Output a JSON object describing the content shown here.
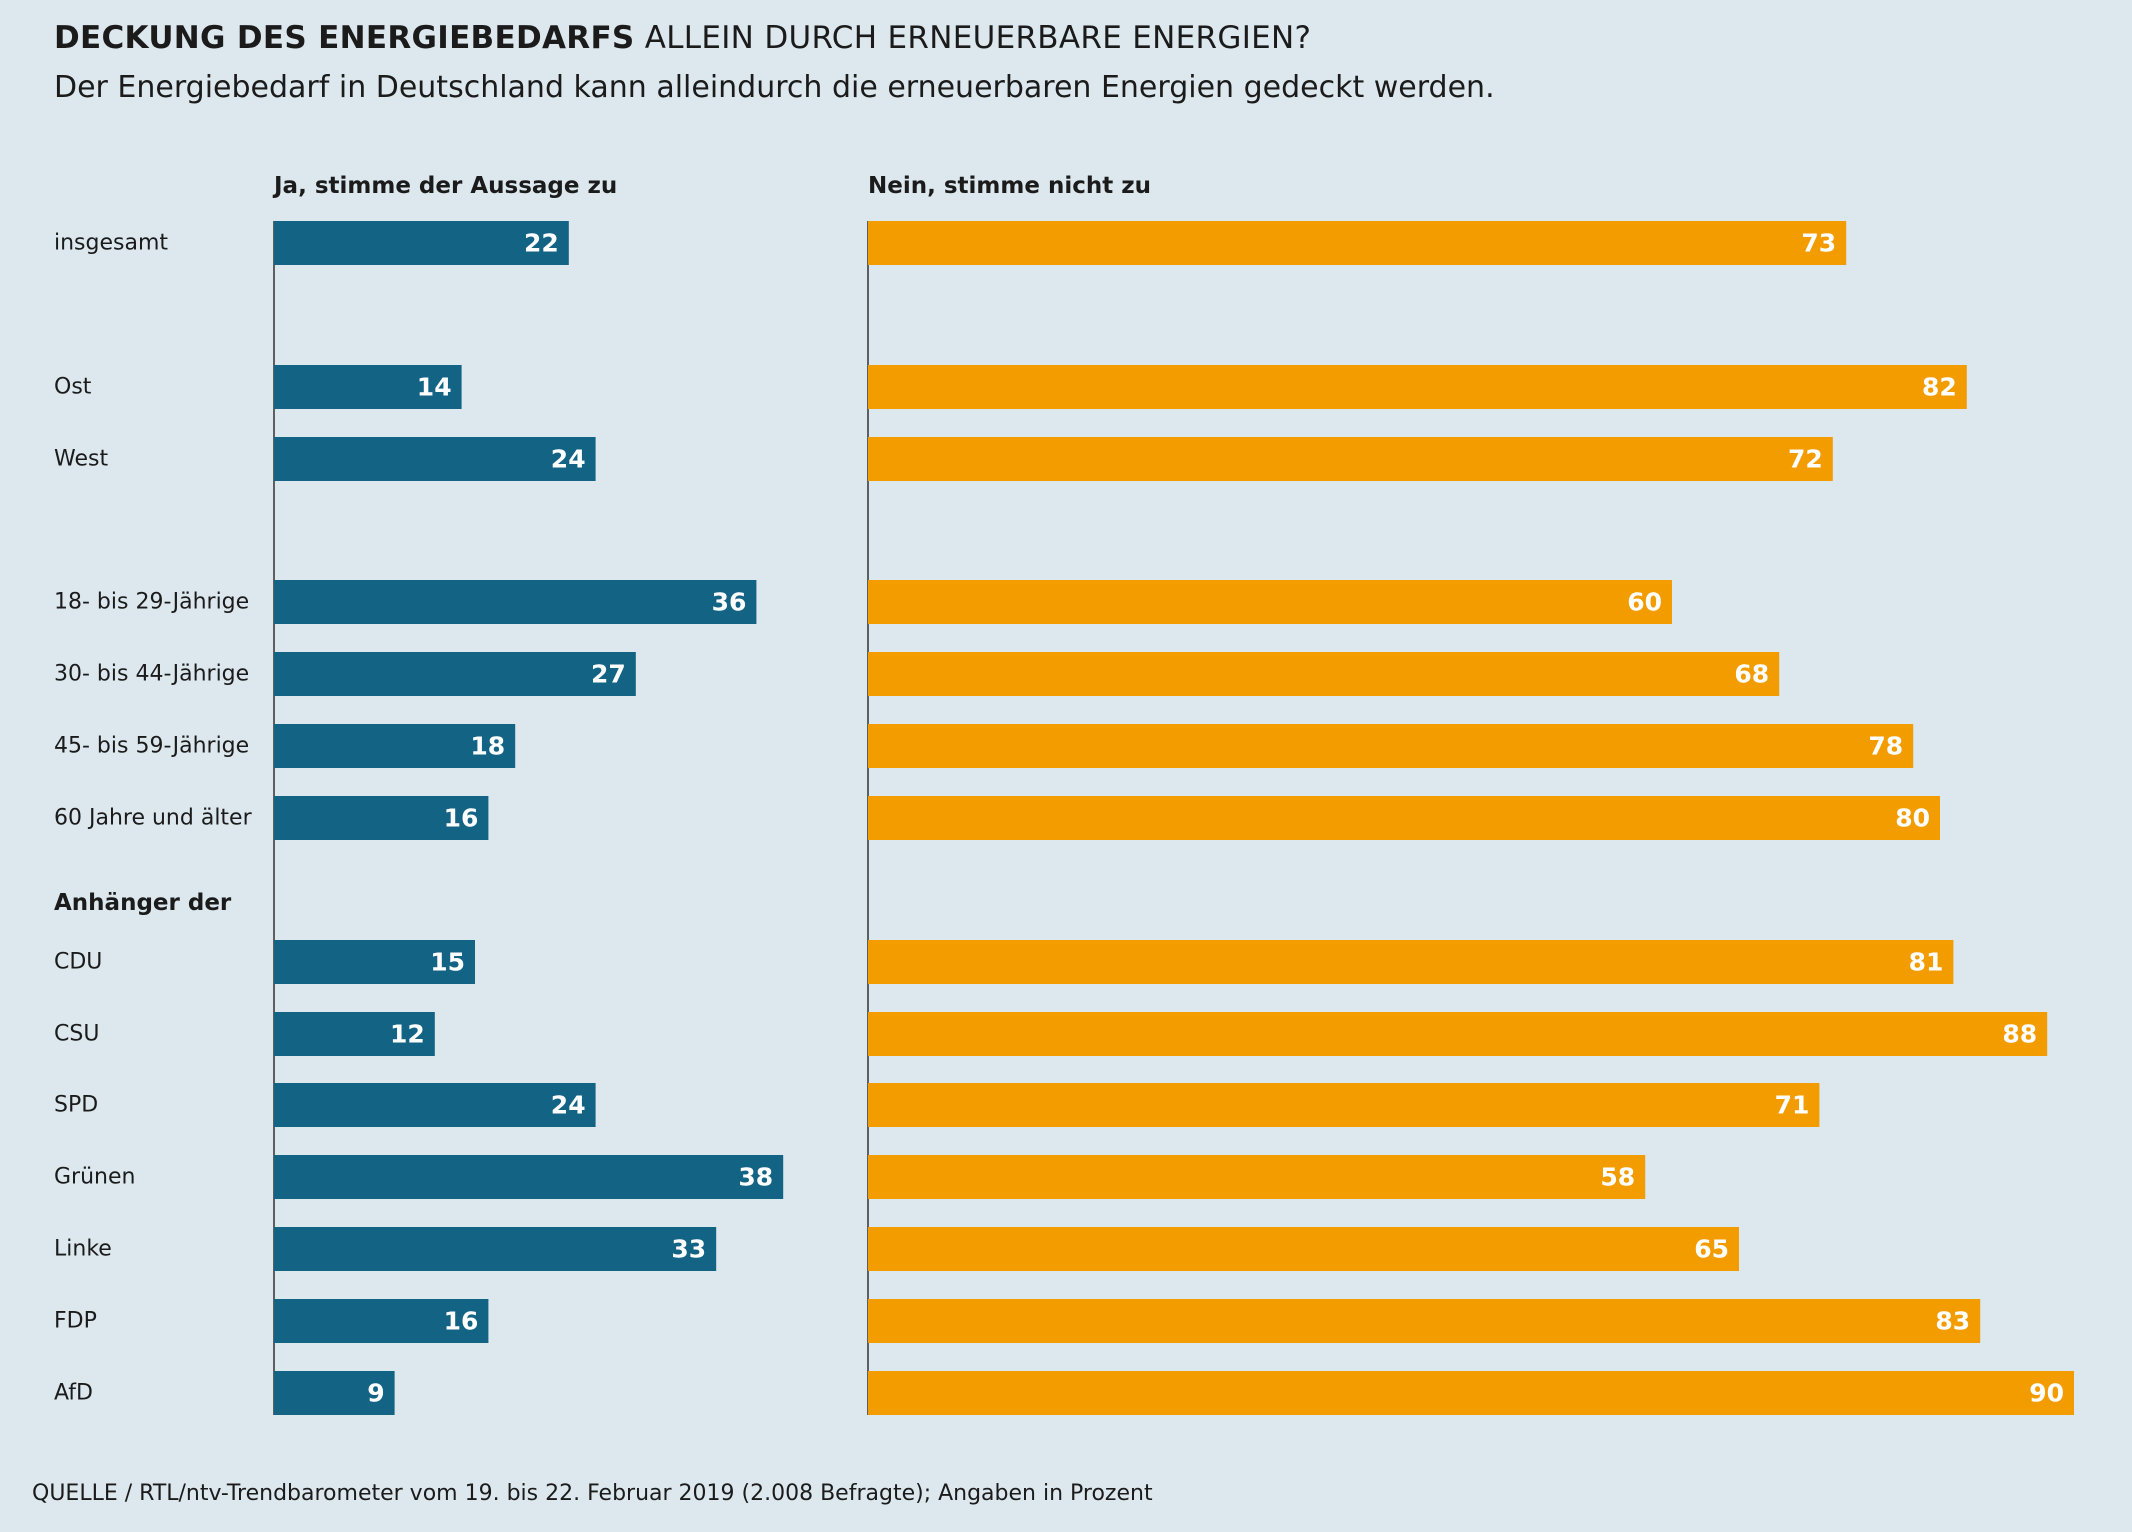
{
  "title_bold": "DECKUNG DES ENERGIEBEDARFS",
  "title_rest": "ALLEIN DURCH ERNEUERBARE ENERGIEN?",
  "subtitle": "Der Energiebedarf in Deutschland kann alleindurch die erneuerbaren Energien gedeckt werden.",
  "source": "QUELLE / RTL/ntv-Trendbarometer vom 19. bis 22. Februar 2019 (2.008 Befragte); Angaben in Prozent",
  "colors": {
    "yes": "#136385",
    "no": "#f39c00",
    "background": "#dce8ee",
    "axis": "#333333"
  },
  "chart_data": {
    "type": "bar",
    "orientation": "horizontal",
    "unit": "Prozent",
    "group_header": "Anhänger der",
    "categories": [
      "insgesamt",
      "Ost",
      "West",
      "18- bis 29-Jährige",
      "30- bis 44-Jährige",
      "45- bis 59-Jährige",
      "60 Jahre und älter",
      "CDU",
      "CSU",
      "SPD",
      "Grünen",
      "Linke",
      "FDP",
      "AfD"
    ],
    "series": [
      {
        "name": "Ja, stimme der Aussage zu",
        "values": [
          22,
          14,
          24,
          36,
          27,
          18,
          16,
          15,
          12,
          24,
          38,
          33,
          16,
          9
        ]
      },
      {
        "name": "Nein, stimme nicht zu",
        "values": [
          73,
          82,
          72,
          60,
          68,
          78,
          80,
          81,
          88,
          71,
          58,
          65,
          83,
          90
        ]
      }
    ],
    "xlim": [
      0,
      100
    ]
  }
}
